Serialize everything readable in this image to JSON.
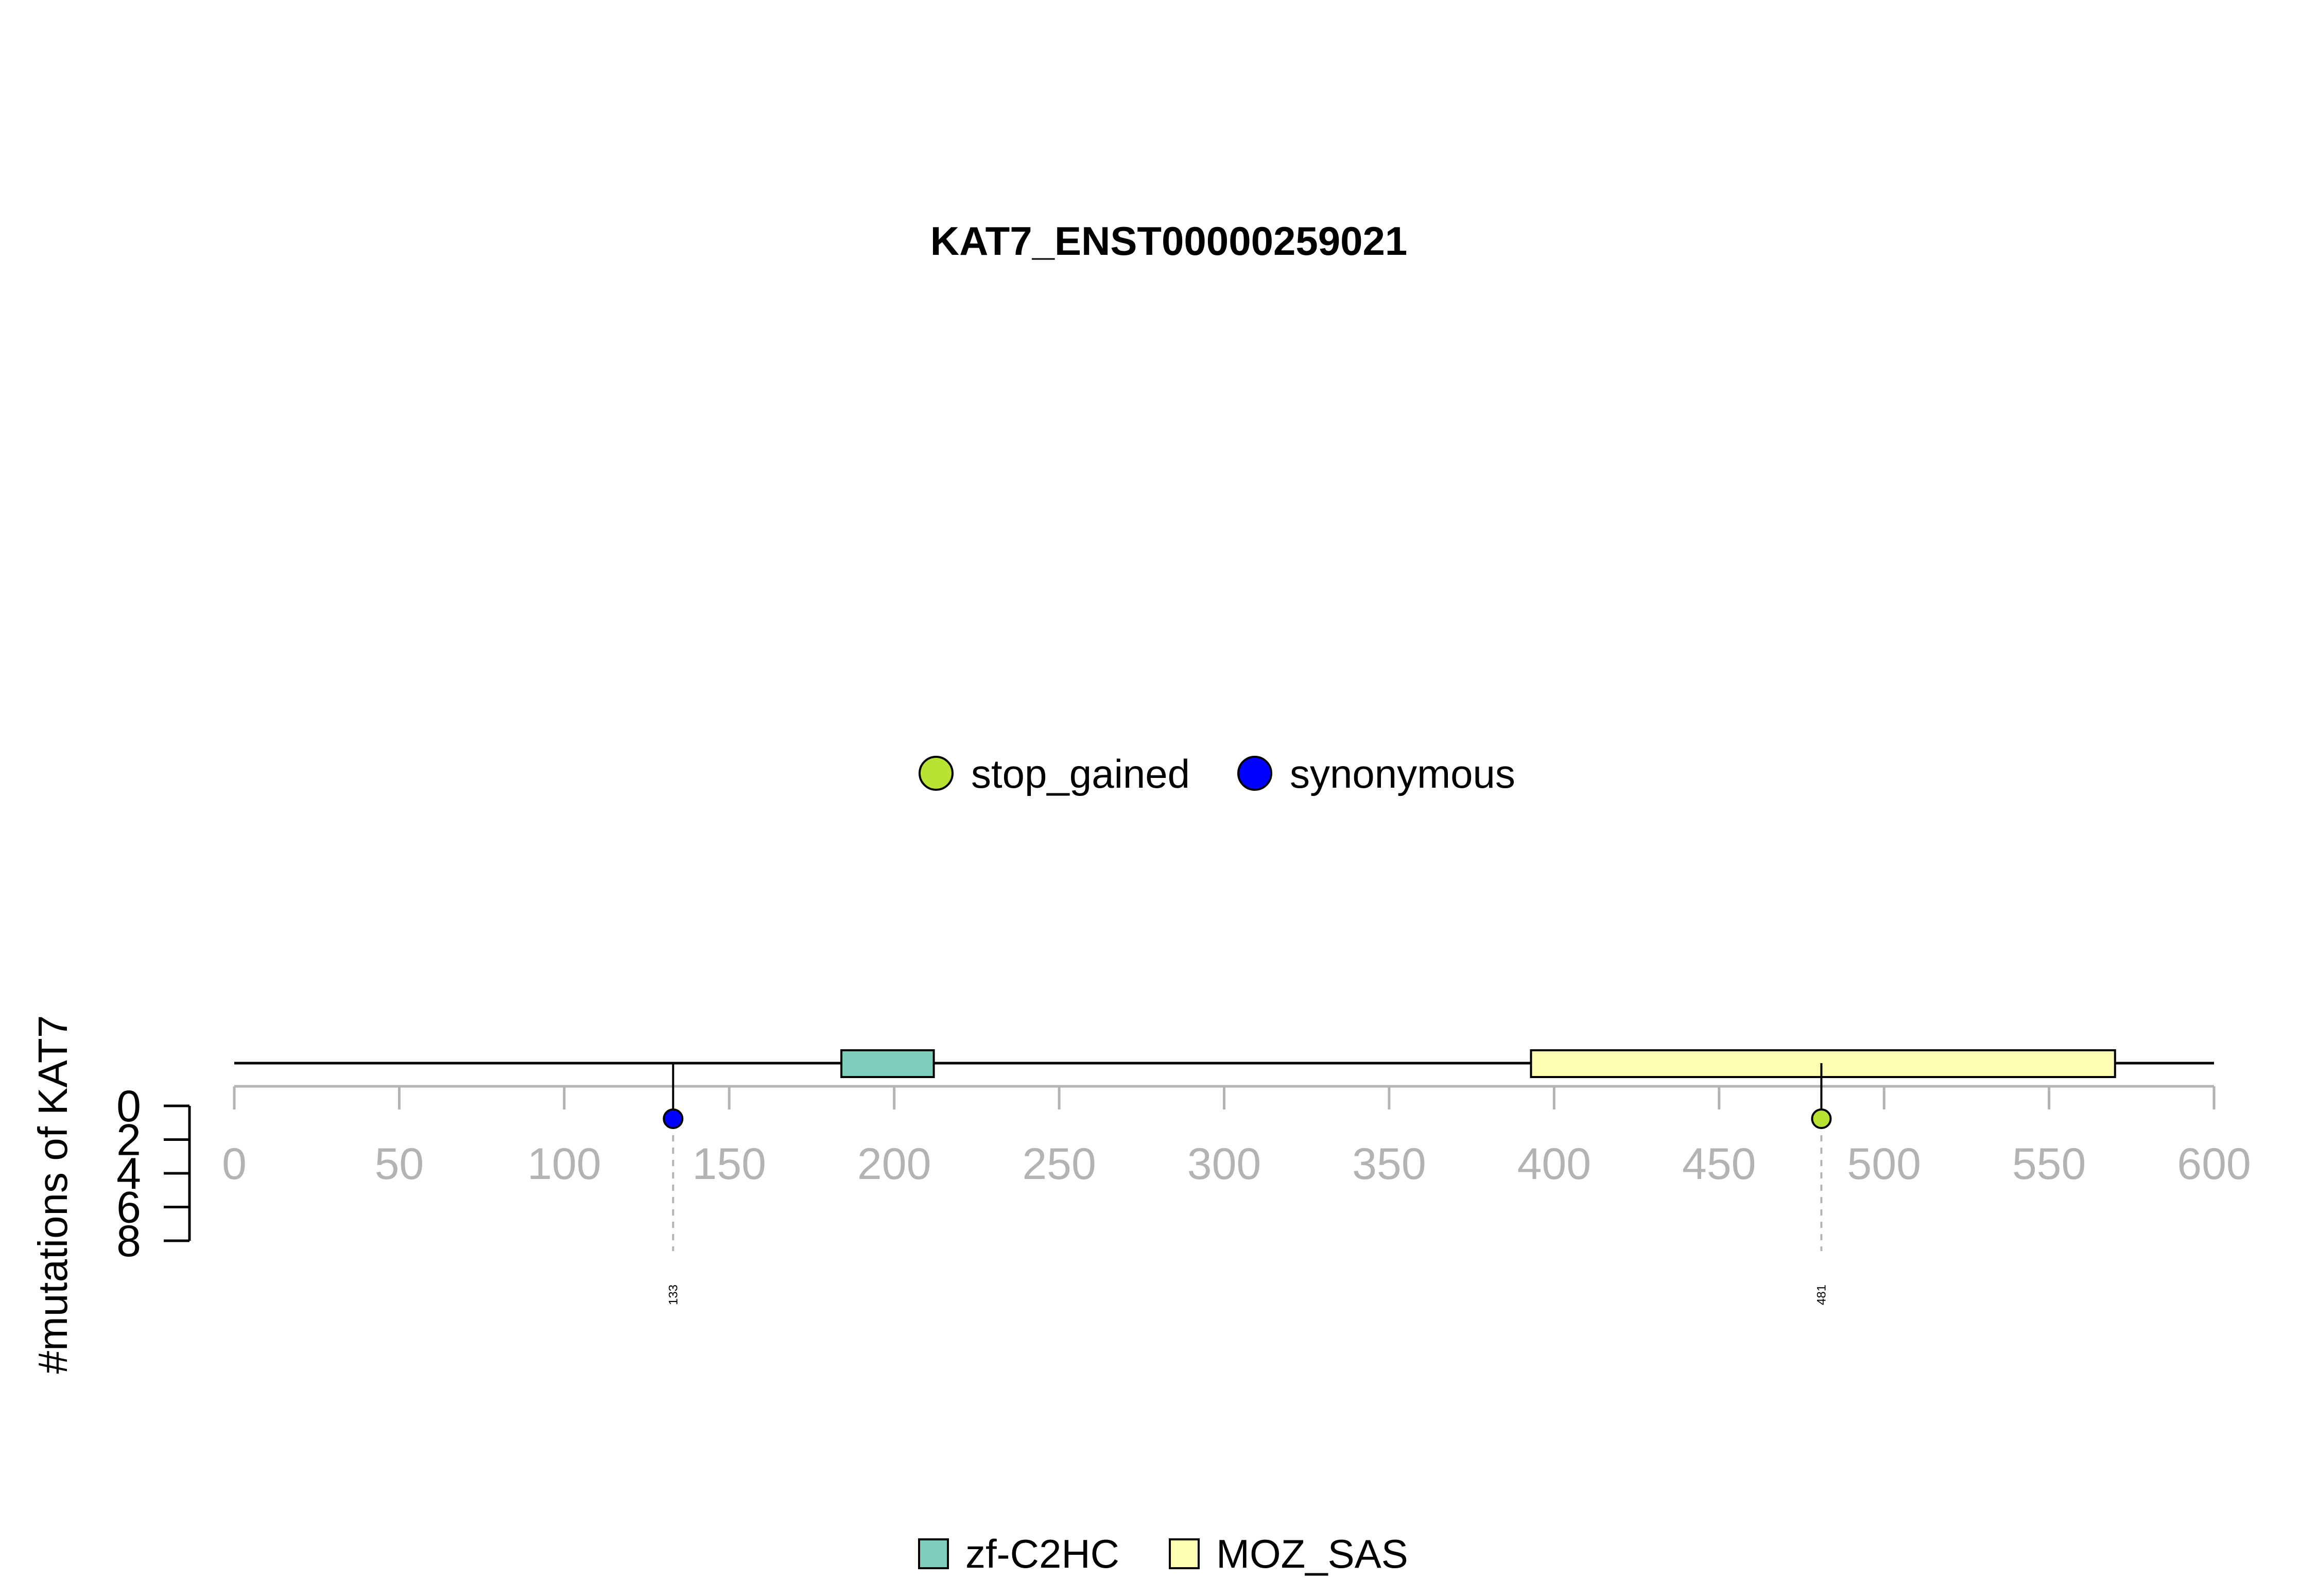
{
  "chart_data": {
    "type": "lollipop",
    "title": "KAT7_ENST00000259021",
    "ylabel": "#mutations of KAT7",
    "xlim": [
      0,
      600
    ],
    "x_ticks": [
      0,
      50,
      100,
      150,
      200,
      250,
      300,
      350,
      400,
      450,
      500,
      550,
      600
    ],
    "ylim": [
      0,
      8
    ],
    "y_ticks": [
      0,
      2,
      4,
      6,
      8
    ],
    "protein_length": 600,
    "mutation_legend": [
      {
        "label": "stop_gained",
        "color": "#b8e332"
      },
      {
        "label": "synonymous",
        "color": "#0000ff"
      }
    ],
    "mutations": [
      {
        "position": 133,
        "count": 1,
        "type": "synonymous",
        "color": "#0000ff",
        "label": "133"
      },
      {
        "position": 481,
        "count": 1,
        "type": "stop_gained",
        "color": "#b8e332",
        "label": "481"
      }
    ],
    "domains": [
      {
        "name": "zf-C2HC",
        "start": 184,
        "end": 212,
        "color": "#7fcdbb"
      },
      {
        "name": "MOZ_SAS",
        "start": 393,
        "end": 570,
        "color": "#ffffb3"
      }
    ],
    "legend_placement": "top-center",
    "domain_legend_placement": "bottom-center",
    "grid": false
  }
}
